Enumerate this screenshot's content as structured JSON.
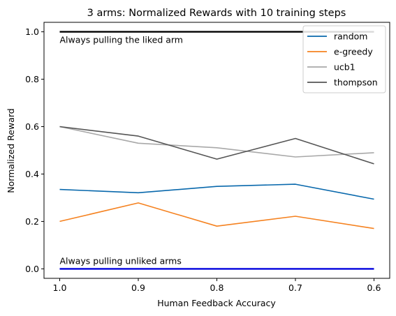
{
  "chart_data": {
    "type": "line",
    "title": "3 arms: Normalized Rewards with 10 training steps",
    "xlabel": "Human Feedback Accuracy",
    "ylabel": "Normalized Reward",
    "x": [
      1.0,
      0.9,
      0.8,
      0.7,
      0.6
    ],
    "x_tick_labels": [
      "1.0",
      "0.9",
      "0.8",
      "0.7",
      "0.6"
    ],
    "x_direction": "descending",
    "ylim": [
      -0.04,
      1.04
    ],
    "y_ticks": [
      0.0,
      0.2,
      0.4,
      0.6,
      0.8,
      1.0
    ],
    "y_tick_labels": [
      "0.0",
      "0.2",
      "0.4",
      "0.6",
      "0.8",
      "1.0"
    ],
    "grid": false,
    "legend_position": "top-right",
    "series": [
      {
        "name": "random",
        "color": "#0868ac",
        "values": [
          0.335,
          0.321,
          0.348,
          0.357,
          0.294
        ]
      },
      {
        "name": "e-greedy",
        "color": "#f58220",
        "values": [
          0.2,
          0.278,
          0.18,
          0.222,
          0.17
        ]
      },
      {
        "name": "ucb1",
        "color": "#a8a8a8",
        "values": [
          0.6,
          0.53,
          0.511,
          0.472,
          0.49
        ]
      },
      {
        "name": "thompson",
        "color": "#555555",
        "values": [
          0.6,
          0.56,
          0.463,
          0.55,
          0.443
        ]
      }
    ],
    "reference_lines": [
      {
        "y": 1.0,
        "color": "#000000",
        "label": "Always pulling the liked arm"
      },
      {
        "y": 0.0,
        "color": "#0000dd",
        "label": "Always pulling unliked arms"
      }
    ]
  }
}
